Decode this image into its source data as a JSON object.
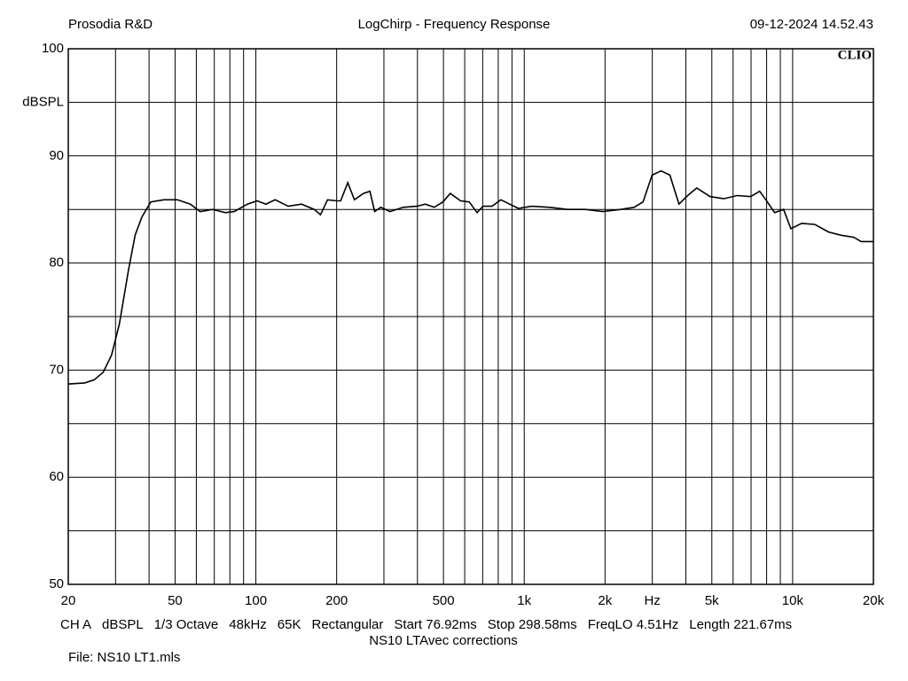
{
  "chart_data": {
    "type": "line",
    "log_x": true,
    "grid": true,
    "header": {
      "left": "Prosodia R&D",
      "title": "LogChirp - Frequency Response",
      "right": "09-12-2024 14.52.43",
      "brand": "CLIO"
    },
    "xlim": [
      20,
      20000
    ],
    "ylim": [
      50,
      100
    ],
    "xticks": [
      20,
      50,
      100,
      200,
      500,
      {
        "value": 1000,
        "label": "1k"
      },
      {
        "value": 2000,
        "label": "2k"
      },
      {
        "value": 3000,
        "label": "Hz"
      },
      {
        "value": 5000,
        "label": "5k"
      },
      {
        "value": 10000,
        "label": "10k"
      },
      {
        "value": 20000,
        "label": "20k"
      }
    ],
    "xgrid_minor": [
      30,
      40,
      60,
      70,
      80,
      90,
      300,
      400,
      600,
      700,
      800,
      900,
      4000,
      6000,
      7000,
      8000,
      9000
    ],
    "yticks": [
      50,
      60,
      70,
      80,
      90,
      {
        "value": 95,
        "label": "dBSPL"
      },
      100
    ],
    "ygrid_minor": [
      55,
      65,
      75,
      85
    ],
    "series": [
      {
        "color": "#000000",
        "x": [
          20,
          23,
          25,
          27,
          29,
          31,
          33.5,
          35.5,
          37.6,
          40.6,
          45.4,
          51,
          57,
          62,
          69,
          77,
          83,
          93,
          101,
          109,
          118,
          132,
          148,
          165,
          174,
          185,
          200,
          207,
          220,
          233,
          252,
          266,
          277,
          292,
          316,
          354,
          398,
          428,
          462,
          498,
          530,
          579,
          624,
          667,
          703,
          758,
          818,
          882,
          951,
          1067,
          1243,
          1448,
          1686,
          1964,
          2288,
          2567,
          2772,
          2995,
          3233,
          3490,
          3770,
          4067,
          4391,
          4931,
          5536,
          6216,
          6978,
          7537,
          7945,
          8571,
          9253,
          9850,
          10800,
          12100,
          13600,
          15100,
          16900,
          18000,
          20000
        ],
        "values": [
          68.7,
          68.8,
          69.1,
          69.8,
          71.4,
          74.3,
          79.3,
          82.6,
          84.3,
          85.7,
          85.9,
          85.9,
          85.5,
          84.8,
          85.0,
          84.7,
          84.8,
          85.5,
          85.8,
          85.5,
          85.9,
          85.3,
          85.5,
          85.0,
          84.5,
          85.9,
          85.8,
          85.8,
          87.5,
          85.9,
          86.5,
          86.7,
          84.8,
          85.2,
          84.8,
          85.2,
          85.3,
          85.5,
          85.2,
          85.7,
          86.5,
          85.8,
          85.7,
          84.7,
          85.3,
          85.3,
          85.9,
          85.5,
          85.1,
          85.3,
          85.2,
          85.0,
          85.0,
          84.8,
          85.0,
          85.2,
          85.7,
          88.2,
          88.6,
          88.2,
          85.5,
          86.3,
          87.0,
          86.2,
          86.0,
          86.3,
          86.2,
          86.7,
          85.9,
          84.7,
          85.0,
          83.2,
          83.7,
          83.6,
          82.9,
          82.6,
          82.4,
          82.0,
          82.0
        ]
      }
    ],
    "footer": {
      "settings": [
        "CH A",
        "dBSPL",
        "1/3 Octave",
        "48kHz",
        "65K",
        "Rectangular",
        "Start 76.92ms",
        "Stop 298.58ms",
        "FreqLO 4.51Hz",
        "Length 221.67ms"
      ],
      "note": "NS10 LTAvec corrections",
      "file": "File: NS10 LT1.mls"
    }
  }
}
